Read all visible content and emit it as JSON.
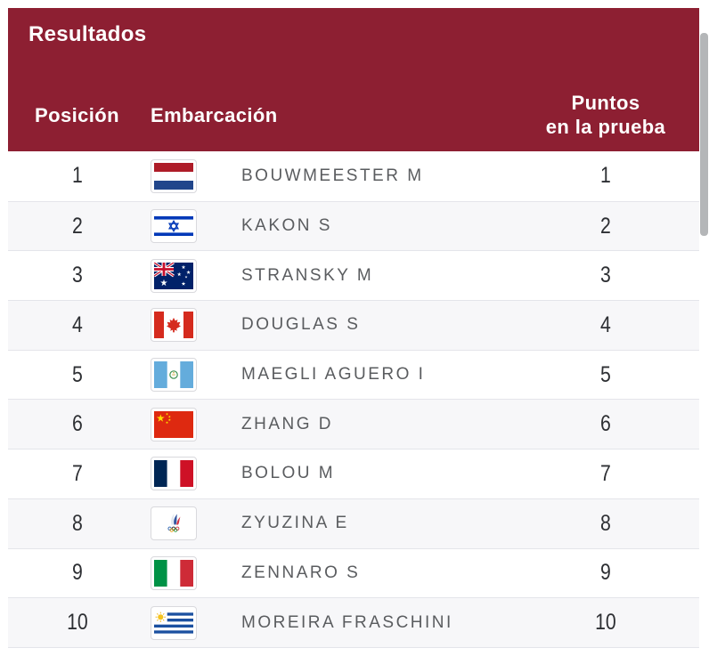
{
  "header": {
    "title": "Resultados",
    "columns": {
      "position": "Posición",
      "boat": "Embarcación",
      "points_line1": "Puntos",
      "points_line2": "en la prueba"
    }
  },
  "colors": {
    "header_bg": "#8d1f32",
    "row_alt": "#f7f7f9",
    "separator": "#e4e5ea",
    "name_text": "#5a5c5f",
    "number_text": "#2d2f33",
    "scrollbar_thumb": "#b4b6b8"
  },
  "rows": [
    {
      "position": "1",
      "flag": "ned",
      "country": "Netherlands",
      "name": "BOUWMEESTER M",
      "points": "1"
    },
    {
      "position": "2",
      "flag": "isr",
      "country": "Israel",
      "name": "KAKON S",
      "points": "2"
    },
    {
      "position": "3",
      "flag": "aus",
      "country": "Australia",
      "name": "STRANSKY M",
      "points": "3"
    },
    {
      "position": "4",
      "flag": "can",
      "country": "Canada",
      "name": "DOUGLAS S",
      "points": "4"
    },
    {
      "position": "5",
      "flag": "gua",
      "country": "Guatemala",
      "name": "MAEGLI AGUERO I",
      "points": "5"
    },
    {
      "position": "6",
      "flag": "chn",
      "country": "China",
      "name": "ZHANG D",
      "points": "6"
    },
    {
      "position": "7",
      "flag": "fra",
      "country": "France",
      "name": "BOLOU M",
      "points": "7"
    },
    {
      "position": "8",
      "flag": "roc",
      "country": "ROC",
      "name": "ZYUZINA E",
      "points": "8"
    },
    {
      "position": "9",
      "flag": "ita",
      "country": "Italy",
      "name": "ZENNARO S",
      "points": "9"
    },
    {
      "position": "10",
      "flag": "uru",
      "country": "Uruguay",
      "name": "MOREIRA FRASCHINI",
      "points": "10"
    }
  ]
}
